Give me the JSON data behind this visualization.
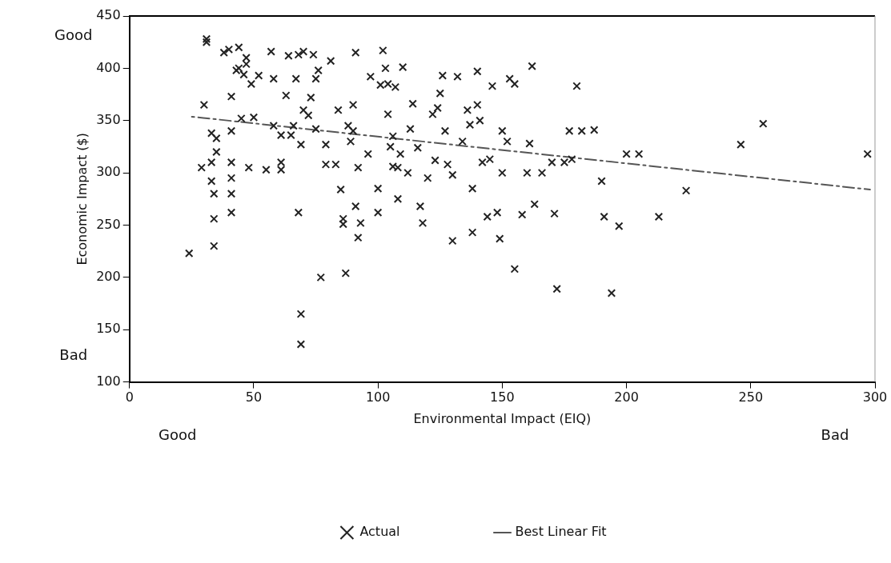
{
  "chart_data": {
    "type": "scatter",
    "xlabel": "Environmental Impact (EIQ)",
    "ylabel": "Economic Impact ($)",
    "annotations": [
      "Good",
      "Bad",
      "Good",
      "Bad"
    ],
    "xlim": [
      0,
      300
    ],
    "xticks": [
      0,
      50,
      100,
      150,
      200,
      250,
      300
    ],
    "ylim": [
      100,
      450
    ],
    "yticks": [
      100,
      150,
      200,
      250,
      300,
      350,
      400,
      450
    ],
    "grid": false,
    "legend": "bottom",
    "marker": "cross",
    "series": [
      {
        "name": "Actual",
        "color": "#222222",
        "x": [
          24,
          29,
          30,
          31,
          31,
          33,
          33,
          33,
          34,
          34,
          34,
          35,
          35,
          38,
          40,
          41,
          41,
          41,
          41,
          41,
          41,
          43,
          44,
          44,
          45,
          46,
          47,
          47,
          48,
          49,
          50,
          52,
          55,
          57,
          58,
          58,
          61,
          61,
          61,
          63,
          64,
          65,
          66,
          67,
          68,
          68,
          69,
          69,
          69,
          70,
          70,
          72,
          73,
          74,
          75,
          75,
          76,
          77,
          79,
          79,
          81,
          83,
          84,
          85,
          86,
          86,
          87,
          88,
          89,
          90,
          90,
          91,
          91,
          92,
          92,
          93,
          96,
          97,
          100,
          100,
          101,
          102,
          103,
          104,
          104,
          105,
          106,
          106,
          107,
          108,
          108,
          109,
          110,
          112,
          113,
          114,
          116,
          118,
          117,
          120,
          122,
          123,
          124,
          125,
          126,
          127,
          128,
          130,
          130,
          132,
          134,
          136,
          137,
          138,
          138,
          140,
          140,
          141,
          142,
          144,
          145,
          146,
          148,
          149,
          150,
          150,
          152,
          153,
          155,
          155,
          158,
          160,
          161,
          162,
          163,
          166,
          170,
          171,
          172,
          175,
          177,
          178,
          180,
          182,
          187,
          190,
          191,
          194,
          197,
          200,
          205,
          213,
          224,
          246,
          255,
          297
        ],
        "values": [
          223,
          305,
          365,
          428,
          425,
          338,
          310,
          292,
          280,
          256,
          230,
          333,
          320,
          415,
          418,
          373,
          340,
          310,
          295,
          280,
          262,
          398,
          400,
          420,
          352,
          394,
          410,
          404,
          305,
          385,
          353,
          393,
          303,
          416,
          345,
          390,
          336,
          310,
          303,
          374,
          412,
          336,
          345,
          390,
          413,
          262,
          165,
          136,
          327,
          360,
          416,
          355,
          372,
          413,
          390,
          342,
          398,
          200,
          308,
          327,
          407,
          308,
          360,
          284,
          256,
          251,
          204,
          345,
          330,
          365,
          340,
          268,
          415,
          305,
          238,
          252,
          318,
          392,
          285,
          262,
          384,
          417,
          400,
          385,
          356,
          325,
          306,
          335,
          382,
          305,
          275,
          318,
          401,
          300,
          342,
          366,
          324,
          252,
          268,
          295,
          356,
          312,
          362,
          376,
          393,
          340,
          308,
          298,
          235,
          392,
          330,
          360,
          346,
          285,
          243,
          365,
          397,
          350,
          310,
          258,
          313,
          383,
          262,
          237,
          300,
          340,
          330,
          390,
          385,
          208,
          260,
          300,
          328,
          402,
          270,
          300,
          310,
          261,
          189,
          310,
          340,
          313,
          383,
          340,
          341,
          292,
          258,
          185,
          249,
          318,
          318,
          258,
          283,
          327,
          347,
          318
        ]
      },
      {
        "name": "Best Linear Fit",
        "type": "line",
        "color": "#555555",
        "line_style": "dashed",
        "marker": "none",
        "x": [
          24,
          298
        ],
        "values": [
          354,
          284
        ]
      }
    ]
  }
}
